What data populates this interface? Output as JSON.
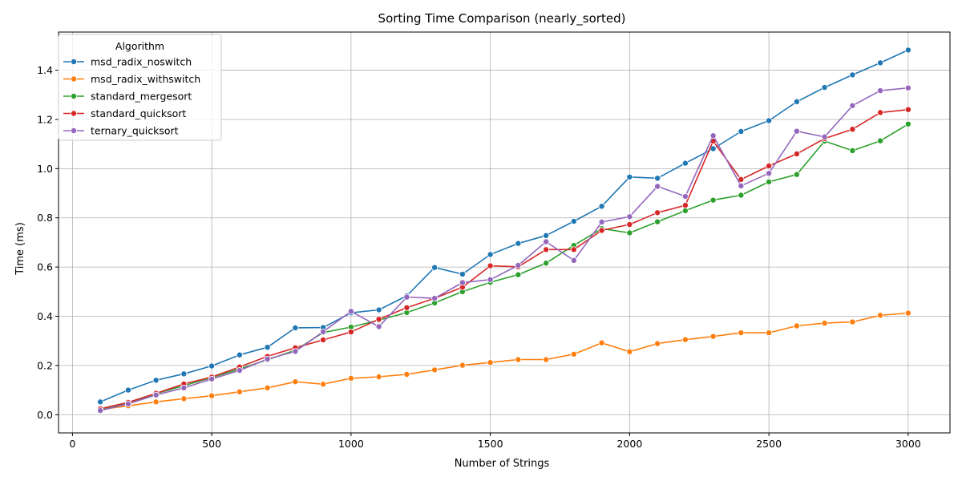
{
  "chart_data": {
    "type": "line",
    "title": "Sorting Time Comparison (nearly_sorted)",
    "xlabel": "Number of Strings",
    "ylabel": "Time (ms)",
    "xlim": [
      -50,
      3150
    ],
    "ylim": [
      -0.074,
      1.555
    ],
    "xticks": [
      0,
      500,
      1000,
      1500,
      2000,
      2500,
      3000
    ],
    "yticks": [
      0.0,
      0.2,
      0.4,
      0.6,
      0.8,
      1.0,
      1.2,
      1.4
    ],
    "xtick_labels": [
      "0",
      "500",
      "1000",
      "1500",
      "2000",
      "2500",
      "3000"
    ],
    "ytick_labels": [
      "0.0",
      "0.2",
      "0.4",
      "0.6",
      "0.8",
      "1.0",
      "1.2",
      "1.4"
    ],
    "grid": true,
    "legend": {
      "title": "Algorithm",
      "placement": "top-left"
    },
    "x": [
      100,
      200,
      300,
      400,
      500,
      600,
      700,
      800,
      900,
      1000,
      1100,
      1200,
      1300,
      1400,
      1500,
      1600,
      1700,
      1800,
      1900,
      2000,
      2100,
      2200,
      2300,
      2400,
      2500,
      2600,
      2700,
      2800,
      2900,
      3000
    ],
    "series": [
      {
        "name": "msd_radix_noswitch",
        "color": "#1f77b4",
        "values": [
          0.052,
          0.1,
          0.14,
          0.166,
          0.198,
          0.243,
          0.274,
          0.353,
          0.354,
          0.414,
          0.426,
          0.483,
          0.598,
          0.571,
          0.651,
          0.696,
          0.728,
          0.786,
          0.847,
          0.966,
          0.961,
          1.022,
          1.081,
          1.151,
          1.195,
          1.272,
          1.33,
          1.381,
          1.43,
          1.482
        ]
      },
      {
        "name": "msd_radix_withswitch",
        "color": "#ff7f0e",
        "values": [
          0.021,
          0.036,
          0.052,
          0.065,
          0.077,
          0.093,
          0.109,
          0.134,
          0.124,
          0.148,
          0.154,
          0.164,
          0.182,
          0.201,
          0.212,
          0.224,
          0.224,
          0.246,
          0.292,
          0.256,
          0.289,
          0.305,
          0.318,
          0.333,
          0.333,
          0.361,
          0.372,
          0.377,
          0.404,
          0.413
        ]
      },
      {
        "name": "standard_mergesort",
        "color": "#2ca02c",
        "values": [
          0.023,
          0.047,
          0.086,
          0.118,
          0.151,
          0.186,
          0.223,
          0.262,
          0.334,
          0.356,
          0.384,
          0.415,
          0.454,
          0.5,
          0.538,
          0.569,
          0.616,
          0.688,
          0.756,
          0.739,
          0.784,
          0.829,
          0.872,
          0.892,
          0.946,
          0.976,
          1.112,
          1.073,
          1.113,
          1.181
        ]
      },
      {
        "name": "standard_quicksort",
        "color": "#d62728",
        "values": [
          0.024,
          0.05,
          0.087,
          0.125,
          0.153,
          0.194,
          0.237,
          0.272,
          0.304,
          0.336,
          0.388,
          0.435,
          0.473,
          0.518,
          0.605,
          0.601,
          0.671,
          0.671,
          0.749,
          0.773,
          0.821,
          0.851,
          1.112,
          0.956,
          1.011,
          1.06,
          1.122,
          1.16,
          1.228,
          1.24
        ]
      },
      {
        "name": "ternary_quicksort",
        "color": "#9467bd",
        "values": [
          0.017,
          0.044,
          0.08,
          0.109,
          0.145,
          0.18,
          0.226,
          0.257,
          0.337,
          0.42,
          0.358,
          0.478,
          0.473,
          0.537,
          0.549,
          0.607,
          0.703,
          0.627,
          0.783,
          0.805,
          0.928,
          0.887,
          1.134,
          0.93,
          0.981,
          1.152,
          1.129,
          1.256,
          1.317,
          1.328
        ]
      }
    ]
  }
}
